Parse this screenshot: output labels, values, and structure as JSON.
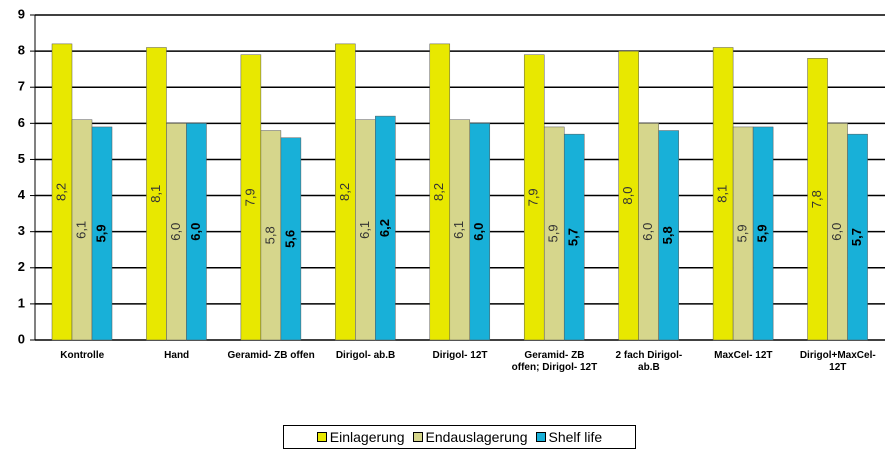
{
  "chart_data": {
    "type": "bar",
    "categories": [
      "Kontrolle",
      "Hand",
      "Geramid- ZB offen",
      "Dirigol- ab.B",
      "Dirigol- 12T",
      "Geramid- ZB offen; Dirigol- 12T",
      "2 fach Dirigol- ab.B",
      "MaxCel- 12T",
      "Dirigol+MaxCel- 12T"
    ],
    "series": [
      {
        "name": "Einlagerung",
        "color": "#e8e800",
        "values": [
          8.2,
          8.1,
          7.9,
          8.2,
          8.2,
          7.9,
          8.0,
          8.1,
          7.8
        ],
        "value_labels": [
          "8,2",
          "8,1",
          "7,9",
          "8,2",
          "8,2",
          "7,9",
          "8,0",
          "8,1",
          "7,8"
        ]
      },
      {
        "name": "Endauslagerung",
        "color": "#d6d68c",
        "values": [
          6.1,
          6.0,
          5.8,
          6.1,
          6.1,
          5.9,
          6.0,
          5.9,
          6.0
        ],
        "value_labels": [
          "6,1",
          "6,0",
          "5,8",
          "6,1",
          "6,1",
          "5,9",
          "6,0",
          "5,9",
          "6,0"
        ]
      },
      {
        "name": "Shelf life",
        "color": "#18b0d8",
        "values": [
          5.9,
          6.0,
          5.6,
          6.2,
          6.0,
          5.7,
          5.8,
          5.9,
          5.7
        ],
        "value_labels": [
          "5,9",
          "6,0",
          "5,6",
          "6,2",
          "6,0",
          "5,7",
          "5,8",
          "5,9",
          "5,7"
        ]
      }
    ],
    "ylim": [
      0,
      9
    ],
    "yticks": [
      0,
      1,
      2,
      3,
      4,
      5,
      6,
      7,
      8,
      9
    ],
    "grid": true,
    "legend": "bottom"
  }
}
